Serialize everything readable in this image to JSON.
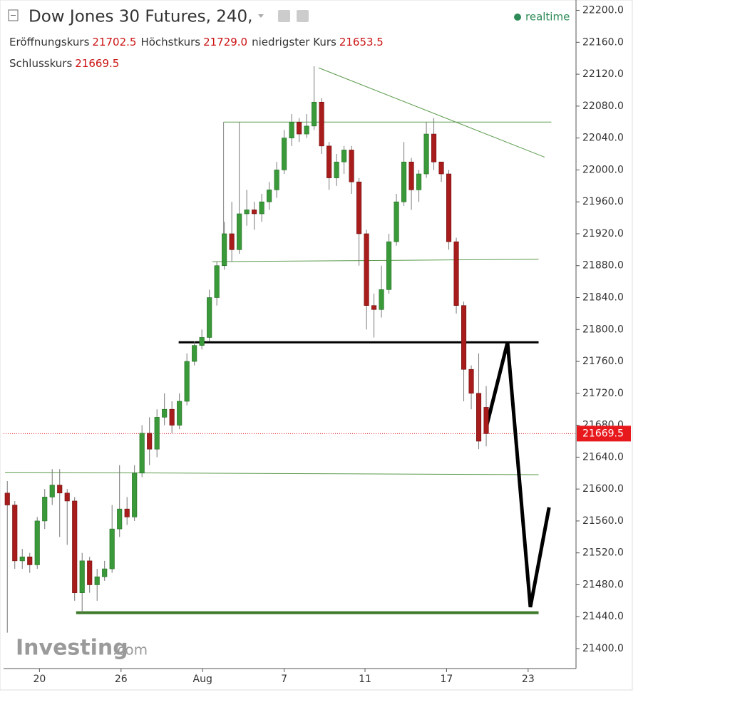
{
  "chart_data": {
    "type": "candlestick",
    "title": "Dow Jones 30 Futures, 240,",
    "status": "realtime",
    "readout": [
      {
        "name": "Eröffnungskurs",
        "value": 21702.5,
        "value_label": "21702.5"
      },
      {
        "name": "Höchstkurs",
        "value": 21729,
        "value_label": "21729.0"
      },
      {
        "name": "niedrigster Kurs",
        "value": 21653.5,
        "value_label": "21653.5"
      },
      {
        "name": "Schlusskurs",
        "value": 21669.5,
        "value_label": "21669.5"
      }
    ],
    "open": [
      21595,
      21580,
      21510,
      21515,
      21505,
      21560,
      21590,
      21605,
      21595,
      21585,
      21470,
      21510,
      21480,
      21490,
      21500,
      21550,
      21575,
      21565,
      21620,
      21670,
      21650,
      21690,
      21700,
      21680,
      21710,
      21760,
      21780,
      21790,
      21840,
      21880,
      21920,
      21900,
      21945,
      21950,
      21945,
      21960,
      21975,
      22000,
      22040,
      22060,
      22045,
      22055,
      22085,
      22030,
      21990,
      22010,
      22025,
      21985,
      21920,
      21830,
      21825,
      21850,
      21910,
      21960,
      22010,
      21975,
      21995,
      22045,
      22010,
      21995,
      21910,
      21830,
      21750,
      21720,
      21702.5
    ],
    "high": [
      21610,
      21585,
      21525,
      21520,
      21565,
      21600,
      21625,
      21625,
      21600,
      21590,
      21520,
      21515,
      21500,
      21510,
      21580,
      21630,
      21590,
      21630,
      21680,
      21690,
      21700,
      21720,
      21710,
      21720,
      21770,
      21785,
      21800,
      21850,
      21885,
      21935,
      21960,
      22060,
      21975,
      21960,
      21970,
      21985,
      22010,
      22050,
      22070,
      22065,
      22070,
      22130,
      22090,
      22035,
      22020,
      22030,
      22030,
      21990,
      21925,
      21845,
      21880,
      21920,
      21970,
      22035,
      22015,
      22000,
      22060,
      22065,
      22005,
      22000,
      21915,
      21835,
      21755,
      21770,
      21729
    ],
    "low": [
      21420,
      21500,
      21500,
      21495,
      21500,
      21550,
      21580,
      21540,
      21530,
      21460,
      21445,
      21470,
      21460,
      21485,
      21495,
      21540,
      21555,
      21560,
      21615,
      21630,
      21640,
      21680,
      21670,
      21675,
      21705,
      21755,
      21775,
      21785,
      21830,
      21875,
      21885,
      21895,
      21930,
      21925,
      21935,
      21950,
      21965,
      21995,
      22030,
      22035,
      22040,
      22050,
      22020,
      21975,
      21980,
      21995,
      21970,
      21880,
      21800,
      21790,
      21815,
      21845,
      21905,
      21955,
      21950,
      21960,
      21990,
      22000,
      21985,
      21900,
      21820,
      21710,
      21700,
      21650,
      21653.5
    ],
    "close": [
      21580,
      21510,
      21515,
      21505,
      21560,
      21590,
      21605,
      21595,
      21585,
      21470,
      21510,
      21480,
      21490,
      21500,
      21550,
      21575,
      21565,
      21620,
      21670,
      21650,
      21690,
      21700,
      21680,
      21710,
      21760,
      21780,
      21790,
      21840,
      21880,
      21920,
      21900,
      21945,
      21950,
      21945,
      21960,
      21975,
      22000,
      22040,
      22060,
      22045,
      22055,
      22085,
      22030,
      21990,
      22010,
      22025,
      21985,
      21920,
      21830,
      21825,
      21850,
      21910,
      21960,
      22010,
      21975,
      21995,
      22045,
      22010,
      21995,
      21910,
      21830,
      21750,
      21720,
      21660,
      21669.5
    ],
    "up_color": "#3a9a3a",
    "down_color": "#a81c1c",
    "last_price": 21669.5,
    "last_price_color": "#e8191c",
    "xlim": [
      -0.5,
      76
    ],
    "xticks": [
      {
        "value": 4.3,
        "label": "20"
      },
      {
        "value": 15.2,
        "label": "26"
      },
      {
        "value": 26.1,
        "label": "Aug"
      },
      {
        "value": 37,
        "label": "7"
      },
      {
        "value": 47.8,
        "label": "11"
      },
      {
        "value": 58.7,
        "label": "17"
      },
      {
        "value": 69.6,
        "label": "23"
      }
    ],
    "ylim": [
      21375,
      22213
    ],
    "yticks": [
      {
        "value": 21400,
        "label": "21400.0"
      },
      {
        "value": 21440,
        "label": "21440.0"
      },
      {
        "value": 21480,
        "label": "21480.0"
      },
      {
        "value": 21520,
        "label": "21520.0"
      },
      {
        "value": 21560,
        "label": "21560.0"
      },
      {
        "value": 21600,
        "label": "21600.0"
      },
      {
        "value": 21640,
        "label": "21640.0"
      },
      {
        "value": 21680,
        "label": "21680.0"
      },
      {
        "value": 21720,
        "label": "21720.0"
      },
      {
        "value": 21760,
        "label": "21760.0"
      },
      {
        "value": 21800,
        "label": "21800.0"
      },
      {
        "value": 21840,
        "label": "21840.0"
      },
      {
        "value": 21880,
        "label": "21880.0"
      },
      {
        "value": 21920,
        "label": "21920.0"
      },
      {
        "value": 21960,
        "label": "21960.0"
      },
      {
        "value": 22000,
        "label": "22000.0"
      },
      {
        "value": 22040,
        "label": "22040.0"
      },
      {
        "value": 22080,
        "label": "22080.0"
      },
      {
        "value": 22120,
        "label": "22120.0"
      },
      {
        "value": 22160,
        "label": "22160.0"
      },
      {
        "value": 22200,
        "label": "22200.0"
      }
    ],
    "drawings": [
      {
        "x": [
          28.9,
          72.7
        ],
        "y": [
          22060,
          22060
        ],
        "color": "#5a9a4a",
        "width": 1
      },
      {
        "x": [
          28.9,
          28.9
        ],
        "y": [
          22060,
          21887
        ],
        "color": "#888888",
        "width": 1
      },
      {
        "x": [
          41.6,
          71.8
        ],
        "y": [
          22128,
          22016
        ],
        "color": "#5a9a4a",
        "width": 1
      },
      {
        "x": [
          27.4,
          71.0
        ],
        "y": [
          21885,
          21888
        ],
        "color": "#5a9a4a",
        "width": 1
      },
      {
        "x": [
          22.9,
          71.0
        ],
        "y": [
          21784,
          21784
        ],
        "color": "#000000",
        "width": 3
      },
      {
        "x": [
          -0.3,
          71.0
        ],
        "y": [
          21621,
          21618
        ],
        "color": "#5a9a4a",
        "width": 1
      },
      {
        "x": [
          9.2,
          71.0
        ],
        "y": [
          21445,
          21445
        ],
        "color": "#3d7a2a",
        "width": 4
      },
      {
        "x": [
          64,
          66.85,
          69.9,
          72.4
        ],
        "y": [
          21677,
          21784,
          21452,
          21577
        ],
        "color": "#000000",
        "width": 5
      }
    ],
    "watermark": {
      "brand": "Investing",
      "suffix": ".com"
    }
  }
}
